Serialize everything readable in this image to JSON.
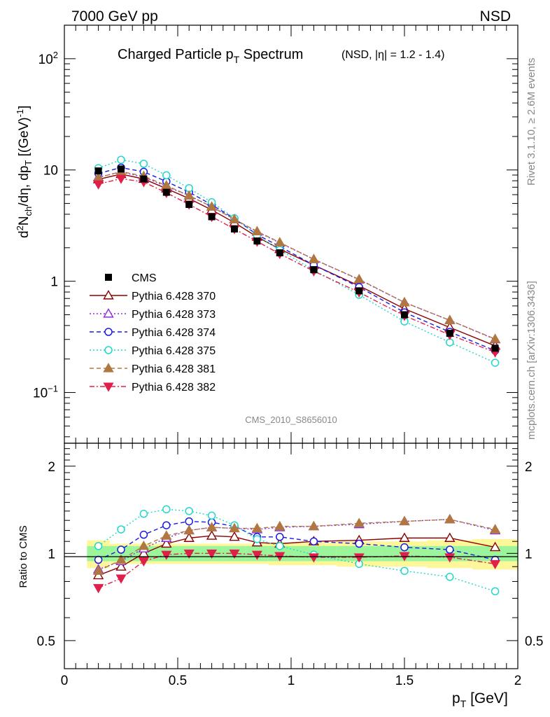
{
  "header": {
    "left": "7000 GeV pp",
    "right": "NSD"
  },
  "title": {
    "main": "Charged Particle p",
    "main_sub": "T",
    "main_tail": " Spectrum",
    "detail": "(NSD, |η| = 1.2 - 1.4)"
  },
  "side_text": {
    "rivet": "Rivet 3.1.10, ≥ 2.6M events",
    "mcplots": "mcplots.cern.ch [arXiv:1306.3436]"
  },
  "watermark": "CMS_2010_S8656010",
  "axes": {
    "xlabel": "p",
    "xlabel_sub": "T",
    "xlabel_tail": " [GeV]",
    "ylabel_top": "d²N/dη, dp [(GeV)⁻¹]",
    "ylabel_ratio": "Ratio to CMS",
    "x_ticks": [
      "0",
      "0.5",
      "1",
      "1.5",
      "2"
    ],
    "y_ticks_top": [
      "10⁻¹",
      "1",
      "10",
      "10²"
    ],
    "y_ticks_ratio": [
      "0.5",
      "1",
      "2"
    ]
  },
  "chart_data": {
    "type": "scatter",
    "x_range": [
      0,
      2.0
    ],
    "y_range_top": [
      0.035,
      200
    ],
    "y_scale_top": "log",
    "y_range_ratio": [
      0.4,
      2.4
    ],
    "y_scale_ratio": "log",
    "legend_position": "lower-left",
    "x": [
      0.15,
      0.25,
      0.35,
      0.45,
      0.55,
      0.65,
      0.75,
      0.85,
      0.95,
      1.1,
      1.3,
      1.5,
      1.7,
      1.9
    ],
    "x_bin_edges": [
      0.1,
      0.2,
      0.3,
      0.4,
      0.5,
      0.6,
      0.7,
      0.8,
      0.9,
      1.0,
      1.2,
      1.4,
      1.6,
      1.8,
      2.0
    ],
    "data": {
      "name": "CMS",
      "values": [
        9.8,
        10.2,
        8.3,
        6.3,
        4.9,
        3.8,
        2.95,
        2.3,
        1.8,
        1.27,
        0.82,
        0.5,
        0.34,
        0.25
      ],
      "band_inner": [
        0.06,
        0.06,
        0.06,
        0.06,
        0.06,
        0.06,
        0.06,
        0.06,
        0.06,
        0.06,
        0.06,
        0.06,
        0.06,
        0.06
      ],
      "band_outer": [
        0.11,
        0.08,
        0.08,
        0.08,
        0.08,
        0.08,
        0.08,
        0.08,
        0.09,
        0.09,
        0.1,
        0.1,
        0.11,
        0.12
      ]
    },
    "series": [
      {
        "name": "Pythia 6.428 370",
        "color": "#8b0000",
        "marker": "triangle-up-open",
        "dash": "solid",
        "ratio": [
          0.84,
          0.9,
          1.0,
          1.08,
          1.13,
          1.15,
          1.14,
          1.09,
          1.08,
          1.1,
          1.11,
          1.13,
          1.13,
          1.05
        ]
      },
      {
        "name": "Pythia 6.428 373",
        "color": "#8a2be2",
        "marker": "triangle-up-open",
        "dash": "dotted",
        "ratio": [
          0.88,
          0.94,
          1.04,
          1.13,
          1.2,
          1.23,
          1.22,
          1.21,
          1.23,
          1.24,
          1.26,
          1.29,
          1.31,
          1.2
        ]
      },
      {
        "name": "Pythia 6.428 374",
        "color": "#1a1ae6",
        "marker": "circle-open",
        "dash": "dashed",
        "ratio": [
          0.95,
          1.03,
          1.16,
          1.25,
          1.29,
          1.28,
          1.24,
          1.14,
          1.14,
          1.1,
          1.08,
          1.05,
          1.03,
          0.95
        ]
      },
      {
        "name": "Pythia 6.428 375",
        "color": "#20d8c8",
        "marker": "circle-open",
        "dash": "dotted",
        "ratio": [
          1.06,
          1.21,
          1.37,
          1.42,
          1.4,
          1.35,
          1.25,
          1.12,
          1.06,
          0.99,
          0.92,
          0.87,
          0.83,
          0.74
        ]
      },
      {
        "name": "Pythia 6.428 381",
        "color": "#b07840",
        "marker": "triangle-up-filled",
        "dash": "dashed",
        "ratio": [
          0.87,
          0.95,
          1.06,
          1.15,
          1.2,
          1.23,
          1.22,
          1.22,
          1.24,
          1.24,
          1.27,
          1.29,
          1.31,
          1.21
        ]
      },
      {
        "name": "Pythia 6.428 382",
        "color": "#e0204a",
        "marker": "triangle-down-filled",
        "dash": "dashdot",
        "ratio": [
          0.76,
          0.82,
          0.94,
          0.99,
          1.0,
          1.0,
          1.0,
          0.99,
          0.98,
          0.97,
          0.97,
          0.98,
          0.97,
          0.92
        ]
      }
    ]
  }
}
